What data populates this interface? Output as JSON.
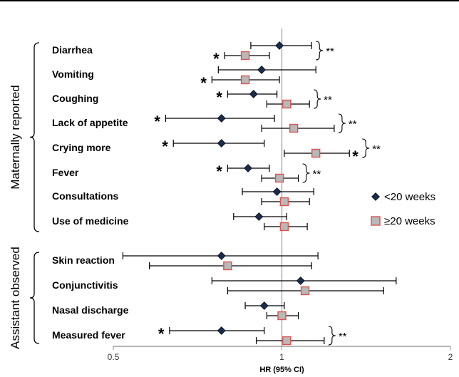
{
  "chart_data": {
    "type": "forest",
    "xlabel": "HR (95% CI)",
    "xscale": "log",
    "xlim": [
      0.5,
      2
    ],
    "xticks": [
      "0.5",
      "1",
      "2"
    ],
    "reference_line": 1,
    "legend": {
      "position": "right",
      "entries": [
        "<20 weeks",
        "≥20 weeks"
      ]
    },
    "colors": {
      "lt20": "#1a2b4c",
      "ge20_fill": "#b8b8b8",
      "ge20_edge": "#d9534f"
    },
    "groups": [
      {
        "label": "Maternally reported",
        "categories": [
          "Diarrhea",
          "Vomiting",
          "Coughing",
          "Lack of appetite",
          "Crying more",
          "Fever",
          "Consultations",
          "Use of medicine"
        ]
      },
      {
        "label": "Assistant observed",
        "categories": [
          "Skin reaction",
          "Conjunctivitis",
          "Nasal discharge",
          "Measured fever"
        ]
      }
    ],
    "series": [
      {
        "name": "<20 weeks",
        "marker": "diamond",
        "points": [
          {
            "category": "Diarrhea",
            "hr": 0.99,
            "lo": 0.88,
            "hi": 1.13,
            "star": false
          },
          {
            "category": "Vomiting",
            "hr": 0.92,
            "lo": 0.77,
            "hi": 1.15,
            "star": false
          },
          {
            "category": "Coughing",
            "hr": 0.89,
            "lo": 0.8,
            "hi": 0.98,
            "star": true
          },
          {
            "category": "Lack of appetite",
            "hr": 0.78,
            "lo": 0.62,
            "hi": 0.97,
            "star": true
          },
          {
            "category": "Crying more",
            "hr": 0.78,
            "lo": 0.64,
            "hi": 0.93,
            "star": true
          },
          {
            "category": "Fever",
            "hr": 0.87,
            "lo": 0.8,
            "hi": 0.95,
            "star": true
          },
          {
            "category": "Consultations",
            "hr": 0.98,
            "lo": 0.85,
            "hi": 1.14,
            "star": false
          },
          {
            "category": "Use of medicine",
            "hr": 0.91,
            "lo": 0.82,
            "hi": 1.02,
            "star": false
          },
          {
            "category": "Skin reaction",
            "hr": 0.78,
            "lo": 0.52,
            "hi": 1.16,
            "star": false
          },
          {
            "category": "Conjunctivitis",
            "hr": 1.08,
            "lo": 0.75,
            "hi": 1.6,
            "star": false
          },
          {
            "category": "Nasal discharge",
            "hr": 0.93,
            "lo": 0.86,
            "hi": 1.01,
            "star": false
          },
          {
            "category": "Measured fever",
            "hr": 0.78,
            "lo": 0.63,
            "hi": 0.93,
            "star": true
          }
        ]
      },
      {
        "name": "≥20 weeks",
        "marker": "square",
        "points": [
          {
            "category": "Diarrhea",
            "hr": 0.86,
            "lo": 0.79,
            "hi": 0.95,
            "star": true
          },
          {
            "category": "Vomiting",
            "hr": 0.86,
            "lo": 0.75,
            "hi": 0.99,
            "star": true
          },
          {
            "category": "Coughing",
            "hr": 1.02,
            "lo": 0.94,
            "hi": 1.12,
            "star": false
          },
          {
            "category": "Lack of appetite",
            "hr": 1.05,
            "lo": 0.92,
            "hi": 1.24,
            "star": false
          },
          {
            "category": "Crying more",
            "hr": 1.15,
            "lo": 1.01,
            "hi": 1.32,
            "star": true
          },
          {
            "category": "Fever",
            "hr": 0.99,
            "lo": 0.92,
            "hi": 1.07,
            "star": false
          },
          {
            "category": "Consultations",
            "hr": 1.01,
            "lo": 0.92,
            "hi": 1.12,
            "star": false
          },
          {
            "category": "Use of medicine",
            "hr": 1.01,
            "lo": 0.93,
            "hi": 1.11,
            "star": false
          },
          {
            "category": "Skin reaction",
            "hr": 0.8,
            "lo": 0.58,
            "hi": 1.13,
            "star": false
          },
          {
            "category": "Conjunctivitis",
            "hr": 1.1,
            "lo": 0.8,
            "hi": 1.52,
            "star": false
          },
          {
            "category": "Nasal discharge",
            "hr": 1.0,
            "lo": 0.94,
            "hi": 1.07,
            "star": false
          },
          {
            "category": "Measured fever",
            "hr": 1.02,
            "lo": 0.9,
            "hi": 1.19,
            "star": false
          }
        ]
      }
    ],
    "star_marker": "*",
    "interaction_marker": "**",
    "interaction_categories": [
      "Diarrhea",
      "Coughing",
      "Lack of appetite",
      "Crying more",
      "Fever",
      "Measured fever"
    ]
  }
}
